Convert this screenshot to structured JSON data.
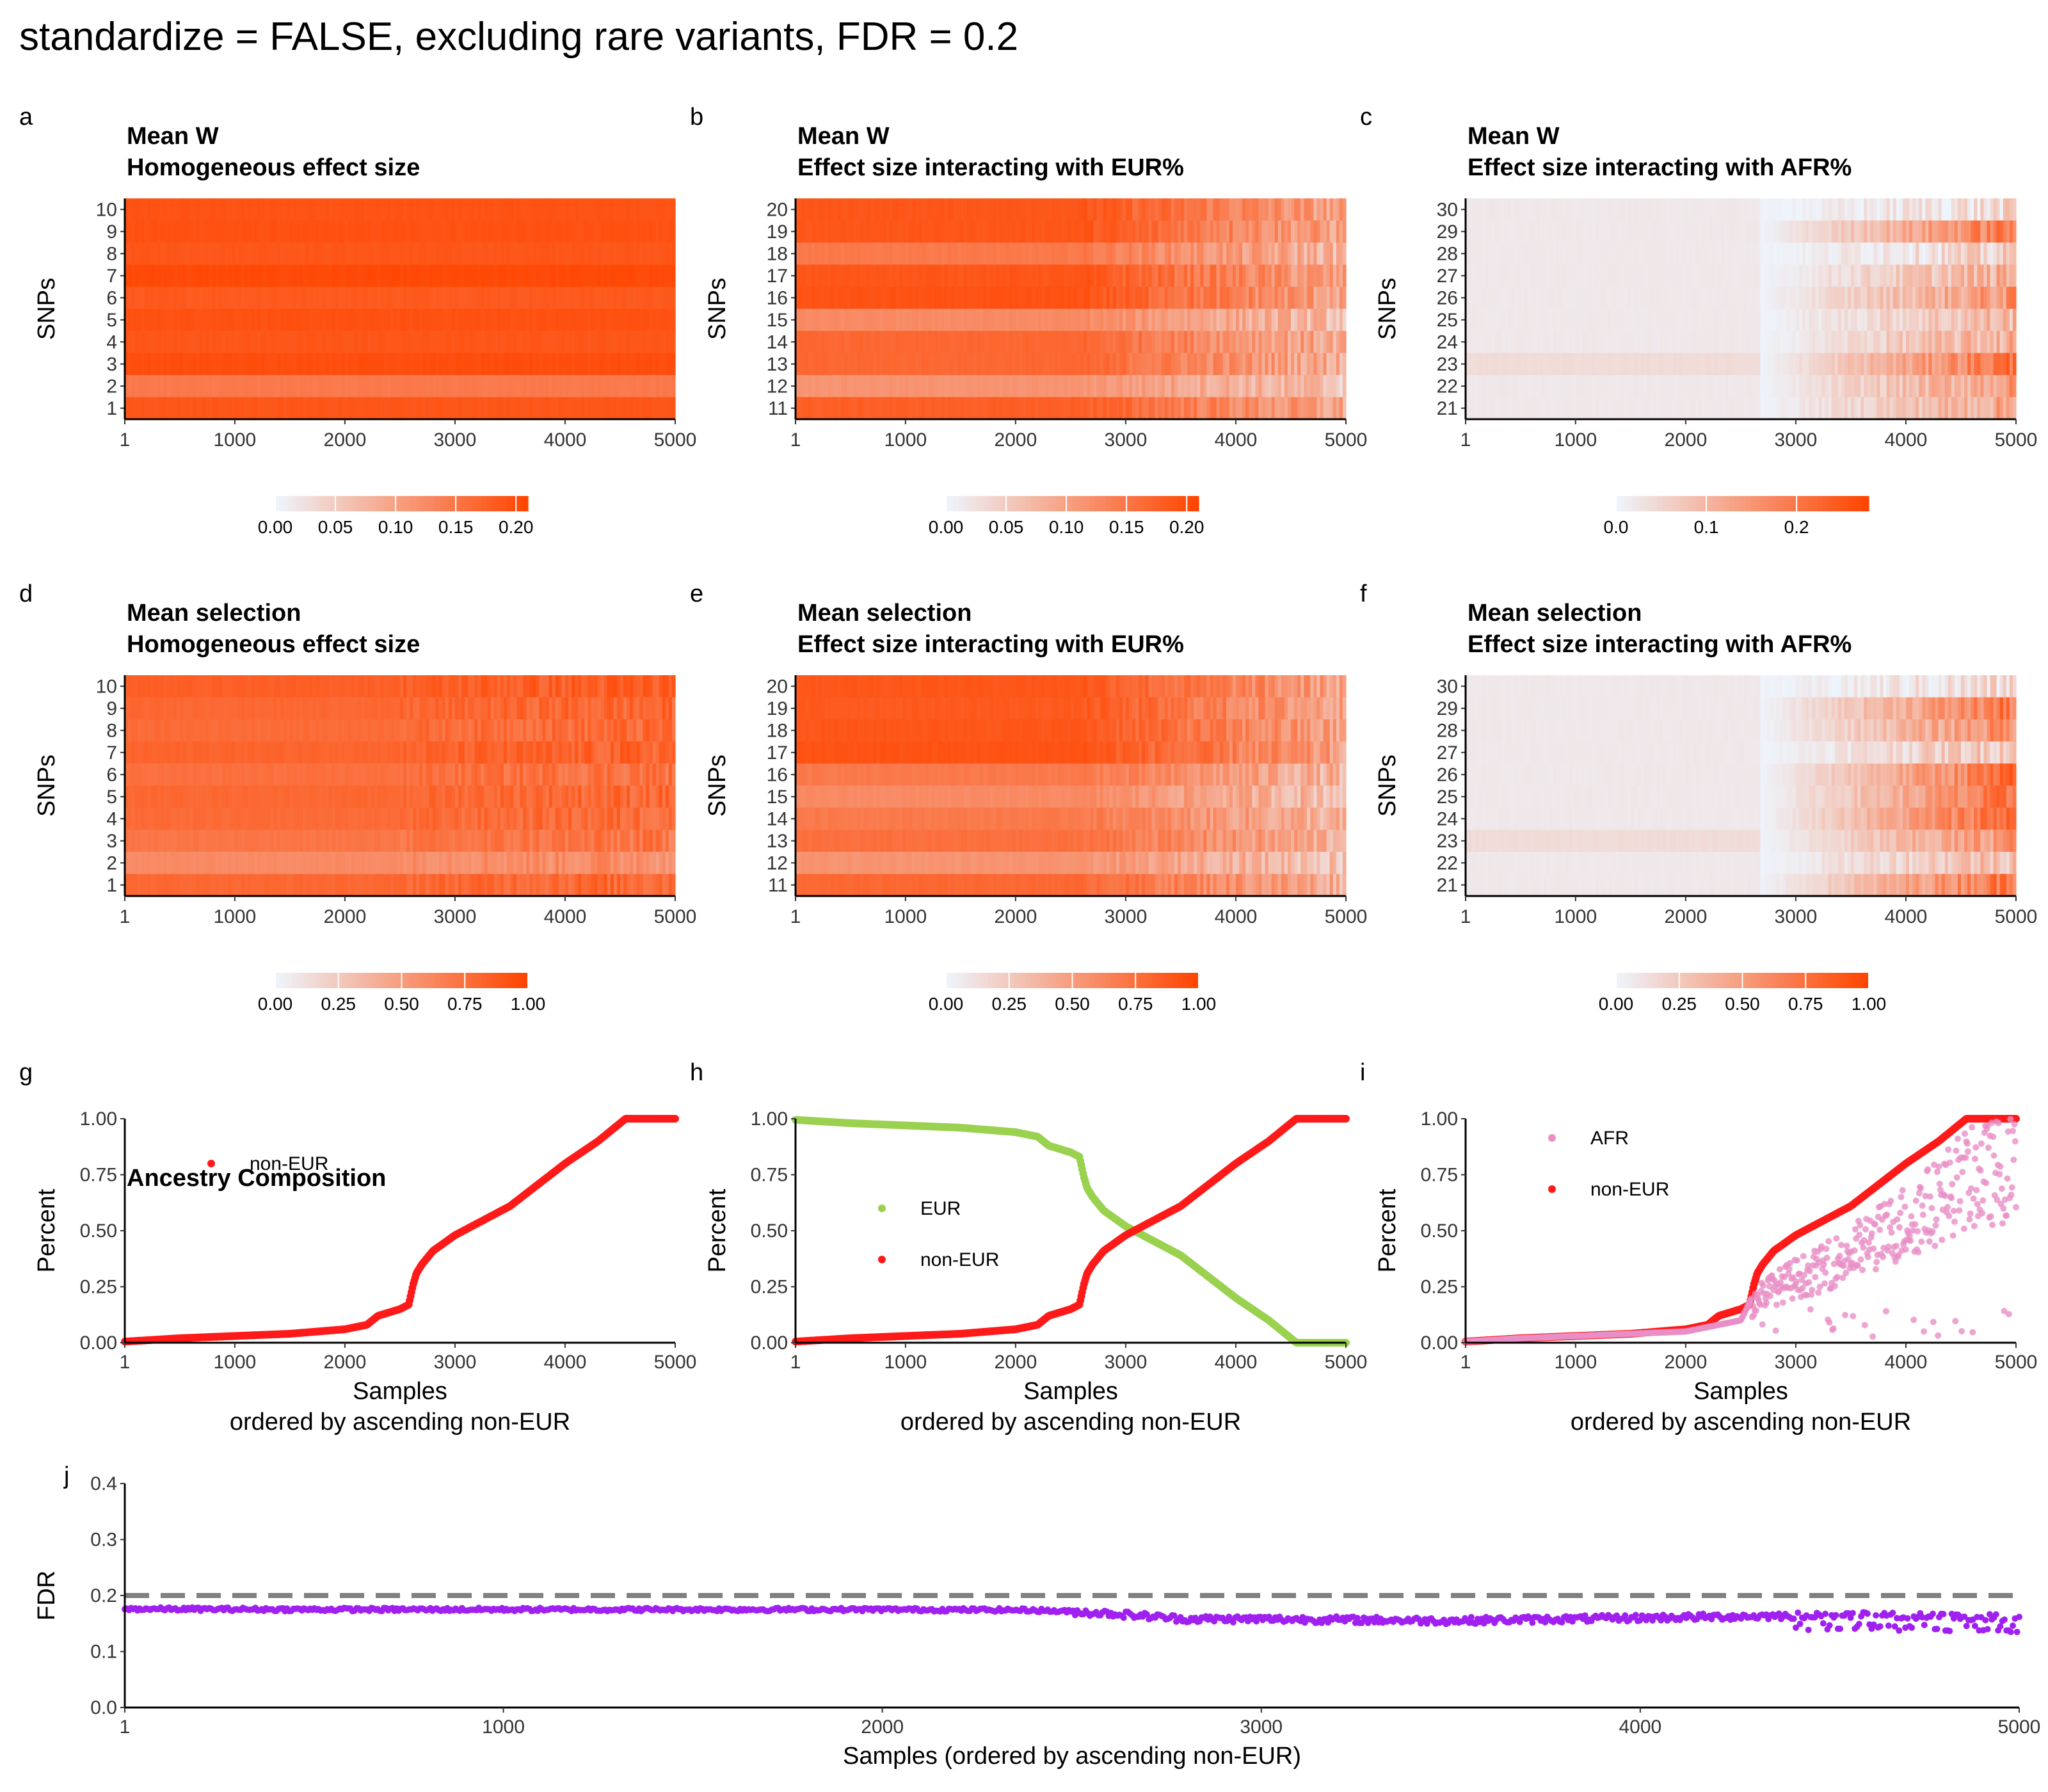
{
  "figure_title": "standardize = FALSE, excluding rare variants,  FDR = 0.2",
  "colors": {
    "heat_low": "#eef4fb",
    "heat_high": "#ff4500",
    "non_eur": "#ff1a1a",
    "eur": "#9ad14e",
    "afr": "#e88fc6",
    "fdr": "#a020f0",
    "threshold": "#808080"
  },
  "chart_data": [
    {
      "id": "a",
      "type": "heatmap",
      "title_line1": "Mean W",
      "title_line2": "Homogeneous effect size",
      "ylabel": "SNPs",
      "rows": [
        "10",
        "9",
        "8",
        "7",
        "6",
        "5",
        "4",
        "3",
        "2",
        "1"
      ],
      "x_range": [
        1,
        5000
      ],
      "x_ticks": [
        "1",
        "1000",
        "2000",
        "3000",
        "4000",
        "5000"
      ],
      "colorbar_ticks": [
        "0.00",
        "0.05",
        "0.10",
        "0.15",
        "0.20"
      ],
      "color_range": [
        0,
        0.21
      ]
    },
    {
      "id": "b",
      "type": "heatmap",
      "title_line1": "Mean W",
      "title_line2": "Effect size interacting with EUR%",
      "ylabel": "SNPs",
      "rows": [
        "20",
        "19",
        "18",
        "17",
        "16",
        "15",
        "14",
        "13",
        "12",
        "11"
      ],
      "x_range": [
        1,
        5000
      ],
      "x_ticks": [
        "1",
        "1000",
        "2000",
        "3000",
        "4000",
        "5000"
      ],
      "colorbar_ticks": [
        "0.00",
        "0.05",
        "0.10",
        "0.15",
        "0.20"
      ],
      "color_range": [
        0,
        0.21
      ]
    },
    {
      "id": "c",
      "type": "heatmap",
      "title_line1": "Mean W",
      "title_line2": "Effect size interacting with AFR%",
      "ylabel": "SNPs",
      "rows": [
        "30",
        "29",
        "28",
        "27",
        "26",
        "25",
        "24",
        "23",
        "22",
        "21"
      ],
      "x_range": [
        1,
        5000
      ],
      "x_ticks": [
        "1",
        "1000",
        "2000",
        "3000",
        "4000",
        "5000"
      ],
      "colorbar_ticks": [
        "0.0",
        "0.1",
        "0.2"
      ],
      "color_range": [
        0,
        0.28
      ]
    },
    {
      "id": "d",
      "type": "heatmap",
      "title_line1": "Mean selection",
      "title_line2": "Homogeneous effect size",
      "ylabel": "SNPs",
      "rows": [
        "10",
        "9",
        "8",
        "7",
        "6",
        "5",
        "4",
        "3",
        "2",
        "1"
      ],
      "x_range": [
        1,
        5000
      ],
      "x_ticks": [
        "1",
        "1000",
        "2000",
        "3000",
        "4000",
        "5000"
      ],
      "colorbar_ticks": [
        "0.00",
        "0.25",
        "0.50",
        "0.75",
        "1.00"
      ],
      "color_range": [
        0,
        1
      ]
    },
    {
      "id": "e",
      "type": "heatmap",
      "title_line1": "Mean selection",
      "title_line2": "Effect size interacting with EUR%",
      "ylabel": "SNPs",
      "rows": [
        "20",
        "19",
        "18",
        "17",
        "16",
        "15",
        "14",
        "13",
        "12",
        "11"
      ],
      "x_range": [
        1,
        5000
      ],
      "x_ticks": [
        "1",
        "1000",
        "2000",
        "3000",
        "4000",
        "5000"
      ],
      "colorbar_ticks": [
        "0.00",
        "0.25",
        "0.50",
        "0.75",
        "1.00"
      ],
      "color_range": [
        0,
        1
      ]
    },
    {
      "id": "f",
      "type": "heatmap",
      "title_line1": "Mean selection",
      "title_line2": "Effect size interacting with AFR%",
      "ylabel": "SNPs",
      "rows": [
        "30",
        "29",
        "28",
        "27",
        "26",
        "25",
        "24",
        "23",
        "22",
        "21"
      ],
      "x_range": [
        1,
        5000
      ],
      "x_ticks": [
        "1",
        "1000",
        "2000",
        "3000",
        "4000",
        "5000"
      ],
      "colorbar_ticks": [
        "0.00",
        "0.25",
        "0.50",
        "0.75",
        "1.00"
      ],
      "color_range": [
        0,
        1
      ]
    },
    {
      "id": "g",
      "type": "scatter",
      "title_line1": "Ancestry Composition",
      "ylabel": "Percent",
      "xlabel_line1": "Samples",
      "xlabel_line2": "ordered by ascending non-EUR",
      "x_range": [
        1,
        5000
      ],
      "ylim": [
        0,
        1
      ],
      "x_ticks": [
        "1",
        "1000",
        "2000",
        "3000",
        "4000",
        "5000"
      ],
      "y_ticks": [
        "0.00",
        "0.25",
        "0.50",
        "0.75",
        "1.00"
      ],
      "legend": [
        "non-EUR"
      ],
      "series": [
        {
          "name": "non-EUR",
          "x": [
            1,
            500,
            1000,
            1500,
            2000,
            2200,
            2300,
            2500,
            2580,
            2620,
            2650,
            2700,
            2800,
            3000,
            3500,
            4000,
            4300,
            4550,
            5000
          ],
          "y": [
            0.005,
            0.02,
            0.03,
            0.04,
            0.06,
            0.08,
            0.12,
            0.15,
            0.17,
            0.26,
            0.31,
            0.35,
            0.41,
            0.48,
            0.61,
            0.8,
            0.9,
            1.0,
            1.0
          ]
        }
      ]
    },
    {
      "id": "h",
      "type": "scatter",
      "ylabel": "Percent",
      "xlabel_line1": "Samples",
      "xlabel_line2": "ordered by ascending non-EUR",
      "x_range": [
        1,
        5000
      ],
      "ylim": [
        0,
        1
      ],
      "x_ticks": [
        "1",
        "1000",
        "2000",
        "3000",
        "4000",
        "5000"
      ],
      "y_ticks": [
        "0.00",
        "0.25",
        "0.50",
        "0.75",
        "1.00"
      ],
      "legend": [
        "EUR",
        "non-EUR"
      ],
      "series": [
        {
          "name": "EUR",
          "x": [
            1,
            500,
            1000,
            1500,
            2000,
            2200,
            2300,
            2500,
            2580,
            2620,
            2650,
            2700,
            2800,
            3000,
            3500,
            4000,
            4300,
            4550,
            5000
          ],
          "y": [
            0.995,
            0.98,
            0.97,
            0.96,
            0.94,
            0.92,
            0.88,
            0.85,
            0.83,
            0.74,
            0.69,
            0.65,
            0.59,
            0.52,
            0.39,
            0.2,
            0.1,
            0.0,
            0.0
          ]
        },
        {
          "name": "non-EUR",
          "x": [
            1,
            500,
            1000,
            1500,
            2000,
            2200,
            2300,
            2500,
            2580,
            2620,
            2650,
            2700,
            2800,
            3000,
            3500,
            4000,
            4300,
            4550,
            5000
          ],
          "y": [
            0.005,
            0.02,
            0.03,
            0.04,
            0.06,
            0.08,
            0.12,
            0.15,
            0.17,
            0.26,
            0.31,
            0.35,
            0.41,
            0.48,
            0.61,
            0.8,
            0.9,
            1.0,
            1.0
          ]
        }
      ]
    },
    {
      "id": "i",
      "type": "scatter",
      "ylabel": "Percent",
      "xlabel_line1": "Samples",
      "xlabel_line2": "ordered by ascending non-EUR",
      "x_range": [
        1,
        5000
      ],
      "ylim": [
        0,
        1
      ],
      "x_ticks": [
        "1",
        "1000",
        "2000",
        "3000",
        "4000",
        "5000"
      ],
      "y_ticks": [
        "0.00",
        "0.25",
        "0.50",
        "0.75",
        "1.00"
      ],
      "legend": [
        "AFR",
        "non-EUR"
      ],
      "series": [
        {
          "name": "AFR",
          "x": [
            1,
            500,
            1000,
            1500,
            2000,
            2200,
            2500,
            2600,
            2700,
            2800,
            3000,
            3200,
            3500,
            3800,
            4000,
            4200,
            4500,
            4800,
            5000
          ],
          "y": [
            0.005,
            0.02,
            0.03,
            0.04,
            0.05,
            0.07,
            0.1,
            0.2,
            0.28,
            0.3,
            0.36,
            0.4,
            0.5,
            0.6,
            0.68,
            0.75,
            0.9,
            0.95,
            0.97
          ]
        },
        {
          "name": "non-EUR",
          "x": [
            1,
            500,
            1000,
            1500,
            2000,
            2200,
            2300,
            2500,
            2580,
            2620,
            2650,
            2700,
            2800,
            3000,
            3500,
            4000,
            4300,
            4550,
            5000
          ],
          "y": [
            0.005,
            0.02,
            0.03,
            0.04,
            0.06,
            0.08,
            0.12,
            0.15,
            0.17,
            0.26,
            0.31,
            0.35,
            0.41,
            0.48,
            0.61,
            0.8,
            0.9,
            1.0,
            1.0
          ]
        }
      ]
    },
    {
      "id": "j",
      "type": "scatter",
      "ylabel": "FDR",
      "xlabel_line1": "Samples (ordered by ascending non-EUR)",
      "x_range": [
        1,
        5000
      ],
      "ylim": [
        0,
        0.4
      ],
      "x_ticks": [
        "1",
        "1000",
        "2000",
        "3000",
        "4000",
        "5000"
      ],
      "y_ticks": [
        "0.0",
        "0.1",
        "0.2",
        "0.3",
        "0.4"
      ],
      "threshold": 0.2,
      "series": [
        {
          "name": "FDR",
          "x": [
            1,
            500,
            1000,
            1500,
            2000,
            2400,
            2600,
            2800,
            3000,
            3500,
            4000,
            4500,
            5000
          ],
          "y": [
            0.176,
            0.175,
            0.175,
            0.175,
            0.175,
            0.174,
            0.168,
            0.158,
            0.158,
            0.155,
            0.16,
            0.165,
            0.16
          ]
        }
      ]
    }
  ]
}
